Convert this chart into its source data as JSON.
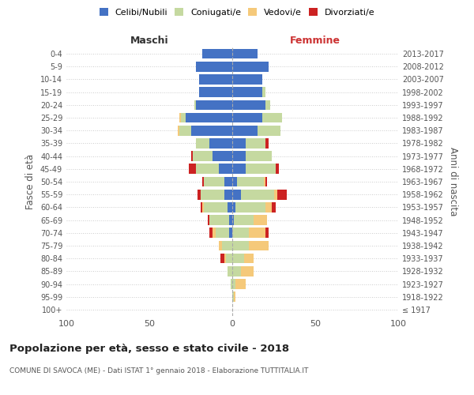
{
  "age_groups": [
    "100+",
    "95-99",
    "90-94",
    "85-89",
    "80-84",
    "75-79",
    "70-74",
    "65-69",
    "60-64",
    "55-59",
    "50-54",
    "45-49",
    "40-44",
    "35-39",
    "30-34",
    "25-29",
    "20-24",
    "15-19",
    "10-14",
    "5-9",
    "0-4"
  ],
  "birth_years": [
    "≤ 1917",
    "1918-1922",
    "1923-1927",
    "1928-1932",
    "1933-1937",
    "1938-1942",
    "1943-1947",
    "1948-1952",
    "1953-1957",
    "1958-1962",
    "1963-1967",
    "1968-1972",
    "1973-1977",
    "1978-1982",
    "1983-1987",
    "1988-1992",
    "1993-1997",
    "1998-2002",
    "2003-2007",
    "2008-2012",
    "2013-2017"
  ],
  "maschi": {
    "celibi": [
      0,
      0,
      0,
      0,
      0,
      0,
      2,
      2,
      3,
      5,
      5,
      8,
      12,
      14,
      25,
      28,
      22,
      20,
      20,
      22,
      18
    ],
    "coniugati": [
      0,
      0,
      1,
      3,
      4,
      6,
      8,
      12,
      14,
      14,
      12,
      14,
      12,
      8,
      7,
      3,
      1,
      0,
      0,
      0,
      0
    ],
    "vedovi": [
      0,
      0,
      0,
      0,
      1,
      2,
      2,
      0,
      1,
      0,
      0,
      0,
      0,
      0,
      1,
      1,
      0,
      0,
      0,
      0,
      0
    ],
    "divorziati": [
      0,
      0,
      0,
      0,
      2,
      0,
      2,
      1,
      1,
      2,
      1,
      4,
      1,
      0,
      0,
      0,
      0,
      0,
      0,
      0,
      0
    ]
  },
  "femmine": {
    "nubili": [
      0,
      0,
      0,
      0,
      0,
      0,
      0,
      1,
      2,
      5,
      3,
      8,
      8,
      8,
      15,
      18,
      20,
      18,
      18,
      22,
      15
    ],
    "coniugate": [
      0,
      1,
      2,
      5,
      7,
      10,
      10,
      12,
      18,
      20,
      16,
      18,
      16,
      12,
      14,
      12,
      3,
      2,
      0,
      0,
      0
    ],
    "vedove": [
      0,
      1,
      6,
      8,
      6,
      12,
      10,
      8,
      4,
      2,
      1,
      0,
      0,
      0,
      0,
      0,
      0,
      0,
      0,
      0,
      0
    ],
    "divorziate": [
      0,
      0,
      0,
      0,
      0,
      0,
      2,
      0,
      2,
      6,
      1,
      2,
      0,
      2,
      0,
      0,
      0,
      0,
      0,
      0,
      0
    ]
  },
  "colors": {
    "celibi": "#4472C4",
    "coniugati": "#C5D9A0",
    "vedovi": "#F5C97A",
    "divorziati": "#CC2222"
  },
  "title": "Popolazione per età, sesso e stato civile - 2018",
  "subtitle": "COMUNE DI SAVOCA (ME) - Dati ISTAT 1° gennaio 2018 - Elaborazione TUTTITALIA.IT",
  "xlabel_left": "Maschi",
  "xlabel_right": "Femmine",
  "ylabel_left": "Fasce di età",
  "ylabel_right": "Anni di nascita",
  "xlim": 100,
  "legend_labels": [
    "Celibi/Nubili",
    "Coniugati/e",
    "Vedovi/e",
    "Divorziati/e"
  ],
  "bg_color": "#ffffff",
  "grid_color": "#cccccc"
}
